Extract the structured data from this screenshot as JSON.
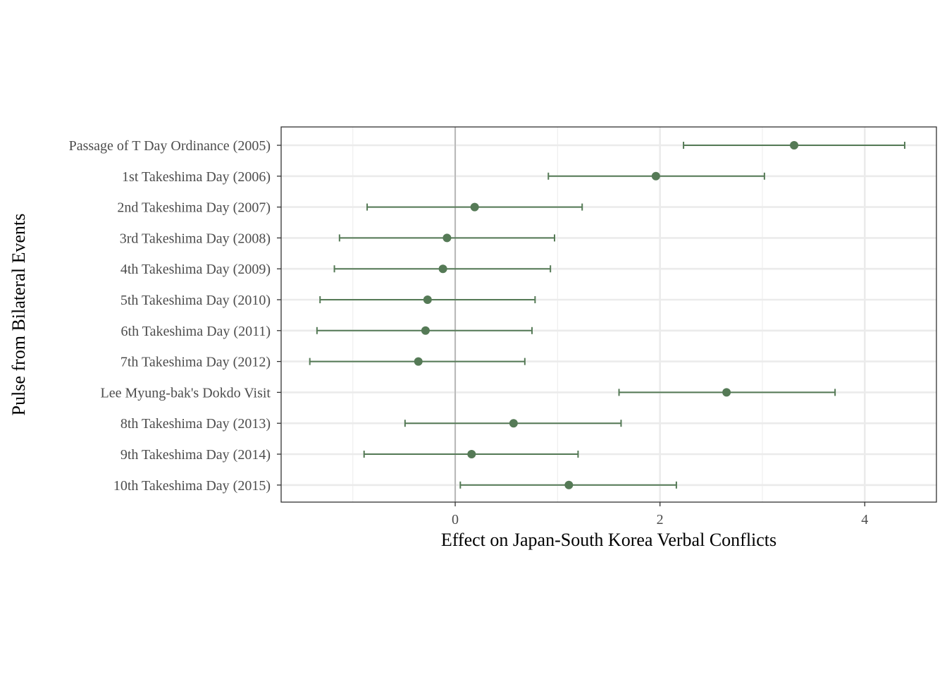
{
  "chart_data": {
    "type": "errorbar-point",
    "orientation": "horizontal",
    "title": "",
    "xlabel": "Effect on Japan-South Korea Verbal Conflicts",
    "ylabel": "Pulse from Bilateral Events",
    "xlim": [
      -1.7,
      4.7
    ],
    "x_ticks": [
      0,
      2,
      4
    ],
    "x_tick_labels": [
      "0",
      "2",
      "4"
    ],
    "reference_line_x": 0,
    "grid": true,
    "color": "#557a56",
    "categories": [
      "Passage of T Day Ordinance (2005)",
      "1st Takeshima Day (2006)",
      "2nd Takeshima Day (2007)",
      "3rd Takeshima Day (2008)",
      "4th Takeshima Day (2009)",
      "5th Takeshima Day (2010)",
      "6th Takeshima Day (2011)",
      "7th Takeshima Day (2012)",
      "Lee Myung-bak's Dokdo Visit",
      "8th Takeshima Day (2013)",
      "9th Takeshima Day (2014)",
      "10th Takeshima Day (2015)"
    ],
    "estimates": [
      3.31,
      1.96,
      0.19,
      -0.08,
      -0.12,
      -0.27,
      -0.29,
      -0.36,
      2.65,
      0.57,
      0.16,
      1.11
    ],
    "lower": [
      2.23,
      0.91,
      -0.86,
      -1.13,
      -1.18,
      -1.32,
      -1.35,
      -1.42,
      1.6,
      -0.49,
      -0.89,
      0.05
    ],
    "upper": [
      4.39,
      3.02,
      1.24,
      0.97,
      0.93,
      0.78,
      0.75,
      0.68,
      3.71,
      1.62,
      1.2,
      2.16
    ]
  }
}
